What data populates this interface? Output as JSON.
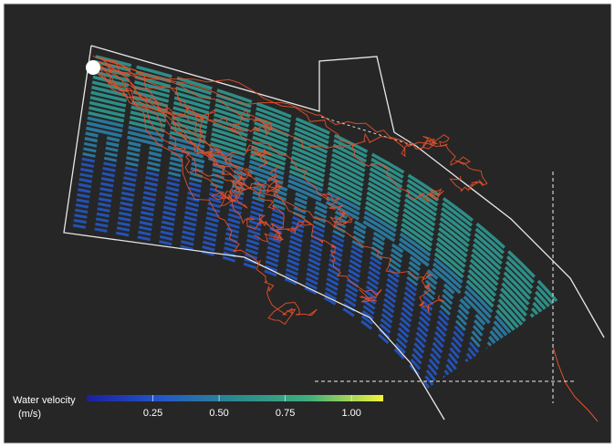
{
  "colorbar": {
    "title": "Water velocity",
    "unit": "(m/s)",
    "lim": [
      0,
      1.12
    ],
    "ticks": [
      {
        "value": 0.25,
        "label": "0.25"
      },
      {
        "value": 0.5,
        "label": "0.50"
      },
      {
        "value": 0.75,
        "label": "0.75"
      },
      {
        "value": 1,
        "label": "1.00"
      }
    ],
    "colors": [
      "#1b1f9e",
      "#2457c8",
      "#2a8a8e",
      "#3fae7c",
      "#f4f23c"
    ]
  }
}
